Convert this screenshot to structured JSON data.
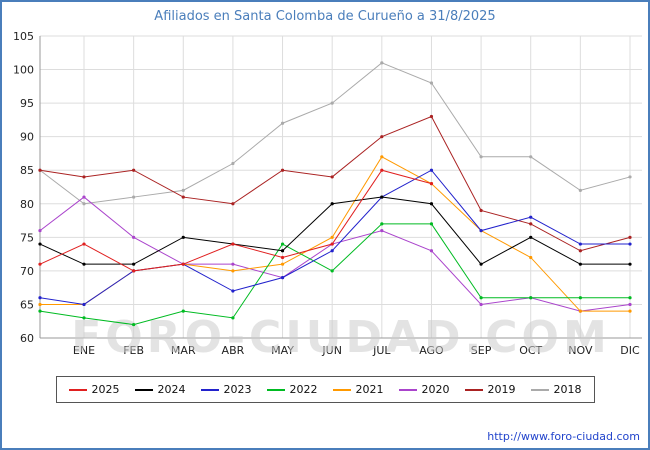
{
  "title": "Afiliados en Santa Colomba de Curueño a 31/8/2025",
  "watermark": "FORO-CIUDAD.COM",
  "footer_url": "http://www.foro-ciudad.com",
  "colors": {
    "title": "#4a7ebb",
    "footer_link": "#2244cc",
    "grid": "#dddddd",
    "axis": "#999999",
    "tick_text": "#222222",
    "watermark": "#cccccc"
  },
  "chart_data": {
    "type": "line",
    "title": "Afiliados en Santa Colomba de Curueño a 31/8/2025",
    "xlabel": "",
    "ylabel": "",
    "categories": [
      "ENE",
      "FEB",
      "MAR",
      "ABR",
      "MAY",
      "JUN",
      "JUL",
      "AGO",
      "SEP",
      "OCT",
      "NOV",
      "DIC"
    ],
    "ylim": [
      60,
      105
    ],
    "ytick_step": 5,
    "yticks": [
      60,
      65,
      70,
      75,
      80,
      85,
      90,
      95,
      100,
      105
    ],
    "grid": true,
    "legend_position": "bottom",
    "series": [
      {
        "name": "2025",
        "color": "#e02020",
        "axis_start": 71,
        "values": [
          74,
          70,
          71,
          74,
          72,
          74,
          85,
          83
        ]
      },
      {
        "name": "2024",
        "color": "#000000",
        "axis_start": 74,
        "values": [
          71,
          71,
          75,
          74,
          73,
          80,
          81,
          80,
          71,
          75,
          71,
          71
        ]
      },
      {
        "name": "2023",
        "color": "#2222cc",
        "axis_start": 66,
        "values": [
          65,
          70,
          71,
          67,
          69,
          73,
          81,
          85,
          76,
          78,
          74,
          74
        ]
      },
      {
        "name": "2022",
        "color": "#00bb22",
        "axis_start": 64,
        "values": [
          63,
          62,
          64,
          63,
          74,
          70,
          77,
          77,
          66,
          66,
          66,
          66
        ]
      },
      {
        "name": "2021",
        "color": "#ff9900",
        "axis_start": 65,
        "values": [
          65,
          70,
          71,
          70,
          71,
          75,
          87,
          83,
          76,
          72,
          64,
          64
        ]
      },
      {
        "name": "2020",
        "color": "#aa44cc",
        "axis_start": 76,
        "values": [
          81,
          75,
          71,
          71,
          69,
          74,
          76,
          73,
          65,
          66,
          64,
          65
        ]
      },
      {
        "name": "2019",
        "color": "#aa2222",
        "axis_start": 85,
        "values": [
          84,
          85,
          81,
          80,
          85,
          84,
          90,
          93,
          79,
          77,
          73,
          75
        ]
      },
      {
        "name": "2018",
        "color": "#aaaaaa",
        "axis_start": 85,
        "values": [
          80,
          81,
          82,
          86,
          92,
          95,
          101,
          98,
          87,
          87,
          82,
          84
        ]
      }
    ]
  }
}
